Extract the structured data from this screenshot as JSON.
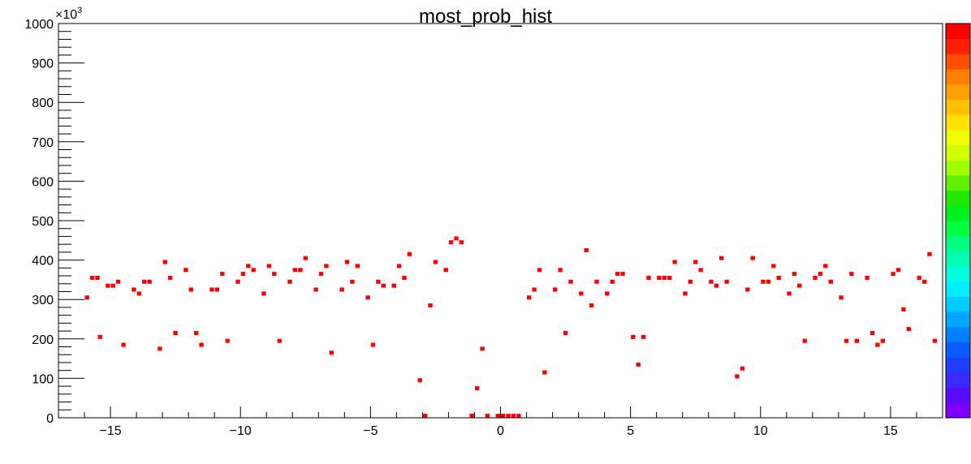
{
  "chart_data": {
    "type": "heatmap",
    "title": "most_prob_hist",
    "xlabel": "",
    "ylabel": "",
    "xlim": [
      -17,
      17
    ],
    "ylim": [
      0,
      1000000
    ],
    "y_multiplier_label": "×10",
    "y_multiplier_exponent": "3",
    "bin_width_x": 0.2,
    "bin_height_y": 10000,
    "x_ticks": [
      -15,
      -10,
      -5,
      0,
      5,
      10,
      15
    ],
    "x_tick_labels": [
      "−15",
      "−10",
      "−5",
      "0",
      "5",
      "10",
      "15"
    ],
    "y_ticks": [
      0,
      100000,
      200000,
      300000,
      400000,
      500000,
      600000,
      700000,
      800000,
      900000,
      1000000
    ],
    "y_tick_labels": [
      "0",
      "100",
      "200",
      "300",
      "400",
      "500",
      "600",
      "700",
      "800",
      "900",
      "1000"
    ],
    "grid": false,
    "cell_color": "#ff0000",
    "palette_colors": [
      "#7f00ff",
      "#5a0aff",
      "#3a2aff",
      "#1e3dff",
      "#0a5aff",
      "#0080ff",
      "#00a6ff",
      "#00ccff",
      "#00eeff",
      "#00ffe0",
      "#00ffb0",
      "#00ff80",
      "#00ff40",
      "#00f020",
      "#20e800",
      "#60f000",
      "#a0ff00",
      "#d0ff00",
      "#f0ff00",
      "#ffe000",
      "#ffc000",
      "#ffa000",
      "#ff8000",
      "#ff5000",
      "#ff2000",
      "#ff0000"
    ],
    "points": [
      {
        "x": -15.9,
        "y": 305000
      },
      {
        "x": -15.7,
        "y": 355000
      },
      {
        "x": -15.5,
        "y": 355000
      },
      {
        "x": -15.4,
        "y": 205000
      },
      {
        "x": -15.1,
        "y": 335000
      },
      {
        "x": -14.9,
        "y": 335000
      },
      {
        "x": -14.7,
        "y": 345000
      },
      {
        "x": -14.5,
        "y": 185000
      },
      {
        "x": -14.1,
        "y": 325000
      },
      {
        "x": -13.9,
        "y": 315000
      },
      {
        "x": -13.7,
        "y": 345000
      },
      {
        "x": -13.5,
        "y": 345000
      },
      {
        "x": -13.1,
        "y": 175000
      },
      {
        "x": -12.9,
        "y": 395000
      },
      {
        "x": -12.7,
        "y": 355000
      },
      {
        "x": -12.5,
        "y": 215000
      },
      {
        "x": -12.1,
        "y": 375000
      },
      {
        "x": -11.9,
        "y": 325000
      },
      {
        "x": -11.7,
        "y": 215000
      },
      {
        "x": -11.5,
        "y": 185000
      },
      {
        "x": -11.1,
        "y": 325000
      },
      {
        "x": -10.9,
        "y": 325000
      },
      {
        "x": -10.7,
        "y": 365000
      },
      {
        "x": -10.5,
        "y": 195000
      },
      {
        "x": -10.1,
        "y": 345000
      },
      {
        "x": -9.9,
        "y": 365000
      },
      {
        "x": -9.7,
        "y": 385000
      },
      {
        "x": -9.5,
        "y": 375000
      },
      {
        "x": -9.1,
        "y": 315000
      },
      {
        "x": -8.9,
        "y": 385000
      },
      {
        "x": -8.7,
        "y": 365000
      },
      {
        "x": -8.5,
        "y": 195000
      },
      {
        "x": -8.1,
        "y": 345000
      },
      {
        "x": -7.9,
        "y": 375000
      },
      {
        "x": -7.7,
        "y": 375000
      },
      {
        "x": -7.5,
        "y": 405000
      },
      {
        "x": -7.1,
        "y": 325000
      },
      {
        "x": -6.9,
        "y": 365000
      },
      {
        "x": -6.7,
        "y": 385000
      },
      {
        "x": -6.5,
        "y": 165000
      },
      {
        "x": -6.1,
        "y": 325000
      },
      {
        "x": -5.9,
        "y": 395000
      },
      {
        "x": -5.7,
        "y": 345000
      },
      {
        "x": -5.5,
        "y": 385000
      },
      {
        "x": -5.1,
        "y": 305000
      },
      {
        "x": -4.9,
        "y": 185000
      },
      {
        "x": -4.7,
        "y": 345000
      },
      {
        "x": -4.5,
        "y": 335000
      },
      {
        "x": -4.1,
        "y": 335000
      },
      {
        "x": -3.9,
        "y": 385000
      },
      {
        "x": -3.7,
        "y": 355000
      },
      {
        "x": -3.5,
        "y": 415000
      },
      {
        "x": -3.1,
        "y": 95000
      },
      {
        "x": -2.9,
        "y": 5000
      },
      {
        "x": -2.7,
        "y": 285000
      },
      {
        "x": -2.5,
        "y": 395000
      },
      {
        "x": -2.1,
        "y": 375000
      },
      {
        "x": -1.9,
        "y": 445000
      },
      {
        "x": -1.7,
        "y": 455000
      },
      {
        "x": -1.5,
        "y": 445000
      },
      {
        "x": -1.1,
        "y": 5000
      },
      {
        "x": -0.9,
        "y": 75000
      },
      {
        "x": -0.7,
        "y": 175000
      },
      {
        "x": -0.5,
        "y": 5000
      },
      {
        "x": -0.1,
        "y": 5000
      },
      {
        "x": 0.1,
        "y": 5000
      },
      {
        "x": 0.3,
        "y": 5000
      },
      {
        "x": 0.5,
        "y": 5000
      },
      {
        "x": 0.7,
        "y": 5000
      },
      {
        "x": 1.1,
        "y": 305000
      },
      {
        "x": 1.3,
        "y": 325000
      },
      {
        "x": 1.5,
        "y": 375000
      },
      {
        "x": 1.7,
        "y": 115000
      },
      {
        "x": 2.1,
        "y": 325000
      },
      {
        "x": 2.3,
        "y": 375000
      },
      {
        "x": 2.5,
        "y": 215000
      },
      {
        "x": 2.7,
        "y": 345000
      },
      {
        "x": 3.1,
        "y": 315000
      },
      {
        "x": 3.3,
        "y": 425000
      },
      {
        "x": 3.5,
        "y": 285000
      },
      {
        "x": 3.7,
        "y": 345000
      },
      {
        "x": 4.1,
        "y": 315000
      },
      {
        "x": 4.3,
        "y": 345000
      },
      {
        "x": 4.5,
        "y": 365000
      },
      {
        "x": 4.7,
        "y": 365000
      },
      {
        "x": 5.1,
        "y": 205000
      },
      {
        "x": 5.3,
        "y": 135000
      },
      {
        "x": 5.5,
        "y": 205000
      },
      {
        "x": 5.7,
        "y": 355000
      },
      {
        "x": 6.1,
        "y": 355000
      },
      {
        "x": 6.3,
        "y": 355000
      },
      {
        "x": 6.5,
        "y": 355000
      },
      {
        "x": 6.7,
        "y": 395000
      },
      {
        "x": 7.1,
        "y": 315000
      },
      {
        "x": 7.3,
        "y": 345000
      },
      {
        "x": 7.5,
        "y": 395000
      },
      {
        "x": 7.7,
        "y": 375000
      },
      {
        "x": 8.1,
        "y": 345000
      },
      {
        "x": 8.3,
        "y": 335000
      },
      {
        "x": 8.5,
        "y": 405000
      },
      {
        "x": 8.7,
        "y": 345000
      },
      {
        "x": 9.1,
        "y": 105000
      },
      {
        "x": 9.3,
        "y": 125000
      },
      {
        "x": 9.5,
        "y": 325000
      },
      {
        "x": 9.7,
        "y": 405000
      },
      {
        "x": 10.1,
        "y": 345000
      },
      {
        "x": 10.3,
        "y": 345000
      },
      {
        "x": 10.5,
        "y": 385000
      },
      {
        "x": 10.7,
        "y": 355000
      },
      {
        "x": 11.1,
        "y": 315000
      },
      {
        "x": 11.3,
        "y": 365000
      },
      {
        "x": 11.5,
        "y": 335000
      },
      {
        "x": 11.7,
        "y": 195000
      },
      {
        "x": 12.1,
        "y": 355000
      },
      {
        "x": 12.3,
        "y": 365000
      },
      {
        "x": 12.5,
        "y": 385000
      },
      {
        "x": 12.7,
        "y": 345000
      },
      {
        "x": 13.1,
        "y": 305000
      },
      {
        "x": 13.3,
        "y": 195000
      },
      {
        "x": 13.5,
        "y": 365000
      },
      {
        "x": 13.7,
        "y": 195000
      },
      {
        "x": 14.1,
        "y": 355000
      },
      {
        "x": 14.3,
        "y": 215000
      },
      {
        "x": 14.5,
        "y": 185000
      },
      {
        "x": 14.7,
        "y": 195000
      },
      {
        "x": 15.1,
        "y": 365000
      },
      {
        "x": 15.3,
        "y": 375000
      },
      {
        "x": 15.5,
        "y": 275000
      },
      {
        "x": 15.7,
        "y": 225000
      },
      {
        "x": 16.1,
        "y": 355000
      },
      {
        "x": 16.3,
        "y": 345000
      },
      {
        "x": 16.5,
        "y": 415000
      },
      {
        "x": 16.7,
        "y": 195000
      }
    ]
  }
}
